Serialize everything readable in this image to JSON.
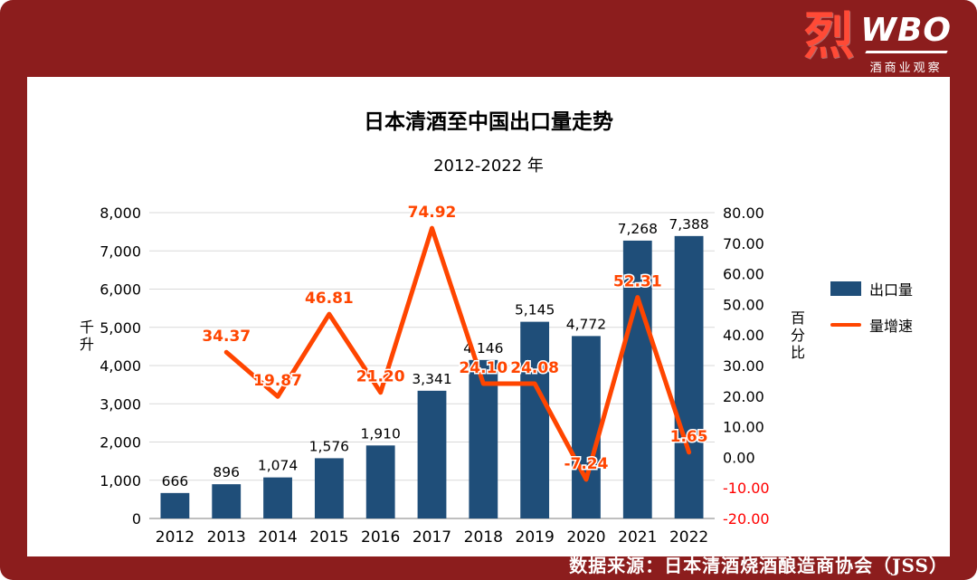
{
  "colors": {
    "background": "#8c1d1d",
    "panel": "#ffffff",
    "bar": "#1f4e79",
    "line": "#ff4500",
    "negative_tick": "#ff0000",
    "gridline": "#d9d9d9",
    "axis": "#7f7f7f"
  },
  "logo": {
    "mark": "烈",
    "brand": "WBO",
    "sub": "酒商业观察"
  },
  "footer": {
    "text": "数据来源：日本清酒烧酒酿造商协会（JSS）"
  },
  "chart_data": {
    "type": "bar",
    "combo": true,
    "title": "日本清酒至中国出口量走势",
    "subtitle": "2012-2022 年",
    "categories": [
      "2012",
      "2013",
      "2014",
      "2015",
      "2016",
      "2017",
      "2018",
      "2019",
      "2020",
      "2021",
      "2022"
    ],
    "series": [
      {
        "name": "出口量",
        "type": "bar",
        "axis": "left",
        "values": [
          666,
          896,
          1074,
          1576,
          1910,
          3341,
          4146,
          5145,
          4772,
          7268,
          7388
        ]
      },
      {
        "name": "量增速",
        "type": "line",
        "axis": "right",
        "values": [
          null,
          34.37,
          19.87,
          46.81,
          21.2,
          74.92,
          24.1,
          24.08,
          -7.24,
          52.31,
          1.65
        ]
      }
    ],
    "y_left": {
      "label": "千升",
      "min": 0,
      "max": 8000,
      "step": 1000
    },
    "y_right": {
      "label": "百分比",
      "min": -20,
      "max": 80,
      "step": 10
    },
    "legend_position": "right",
    "grid": true
  }
}
